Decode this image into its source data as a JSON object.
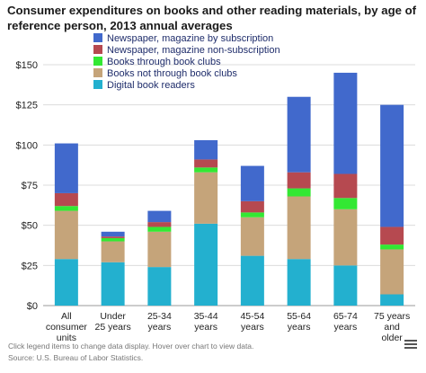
{
  "title": "Consumer expenditures on books and other reading materials, by age of reference person, 2013 annual averages",
  "footnote": "Click legend items to change data display. Hover over chart to view data.",
  "source": "Source: U.S. Bureau of Labor Statistics.",
  "menu_icon": "hamburger-menu-icon",
  "chart_data": {
    "type": "bar",
    "stacked": true,
    "categories": [
      "All consumer units",
      "Under 25 years",
      "25-34 years",
      "35-44 years",
      "45-54 years",
      "55-64 years",
      "65-74 years",
      "75 years and older"
    ],
    "category_lines": [
      [
        "All",
        "consumer",
        "units"
      ],
      [
        "Under",
        "25 years"
      ],
      [
        "25-34",
        "years"
      ],
      [
        "35-44",
        "years"
      ],
      [
        "45-54",
        "years"
      ],
      [
        "55-64",
        "years"
      ],
      [
        "65-74",
        "years"
      ],
      [
        "75 years",
        "and",
        "older"
      ]
    ],
    "y_tick_labels": [
      "$0",
      "$25",
      "$50",
      "$75",
      "$100",
      "$125",
      "$150"
    ],
    "ylim": [
      0,
      150
    ],
    "grid": true,
    "legend_position": "top-right",
    "series": [
      {
        "name": "Digital book readers",
        "color": "#23b0cf",
        "values": [
          29,
          27,
          24,
          51,
          31,
          29,
          25,
          7
        ]
      },
      {
        "name": "Books not through book clubs",
        "color": "#c5a47a",
        "values": [
          30,
          13,
          22,
          32,
          24,
          39,
          35,
          28
        ]
      },
      {
        "name": "Books through book clubs",
        "color": "#33e833",
        "values": [
          3,
          2,
          3,
          3,
          3,
          5,
          7,
          3
        ]
      },
      {
        "name": "Newspaper, magazine non-subscription",
        "color": "#b64950",
        "values": [
          8,
          1,
          3,
          5,
          7,
          10,
          15,
          11
        ]
      },
      {
        "name": "Newspaper, magazine by subscription",
        "color": "#4169cc",
        "values": [
          31,
          3,
          7,
          12,
          22,
          47,
          63,
          76
        ]
      }
    ],
    "legend_order": [
      "Newspaper, magazine by subscription",
      "Newspaper, magazine non-subscription",
      "Books through book clubs",
      "Books not through book clubs",
      "Digital book readers"
    ]
  }
}
